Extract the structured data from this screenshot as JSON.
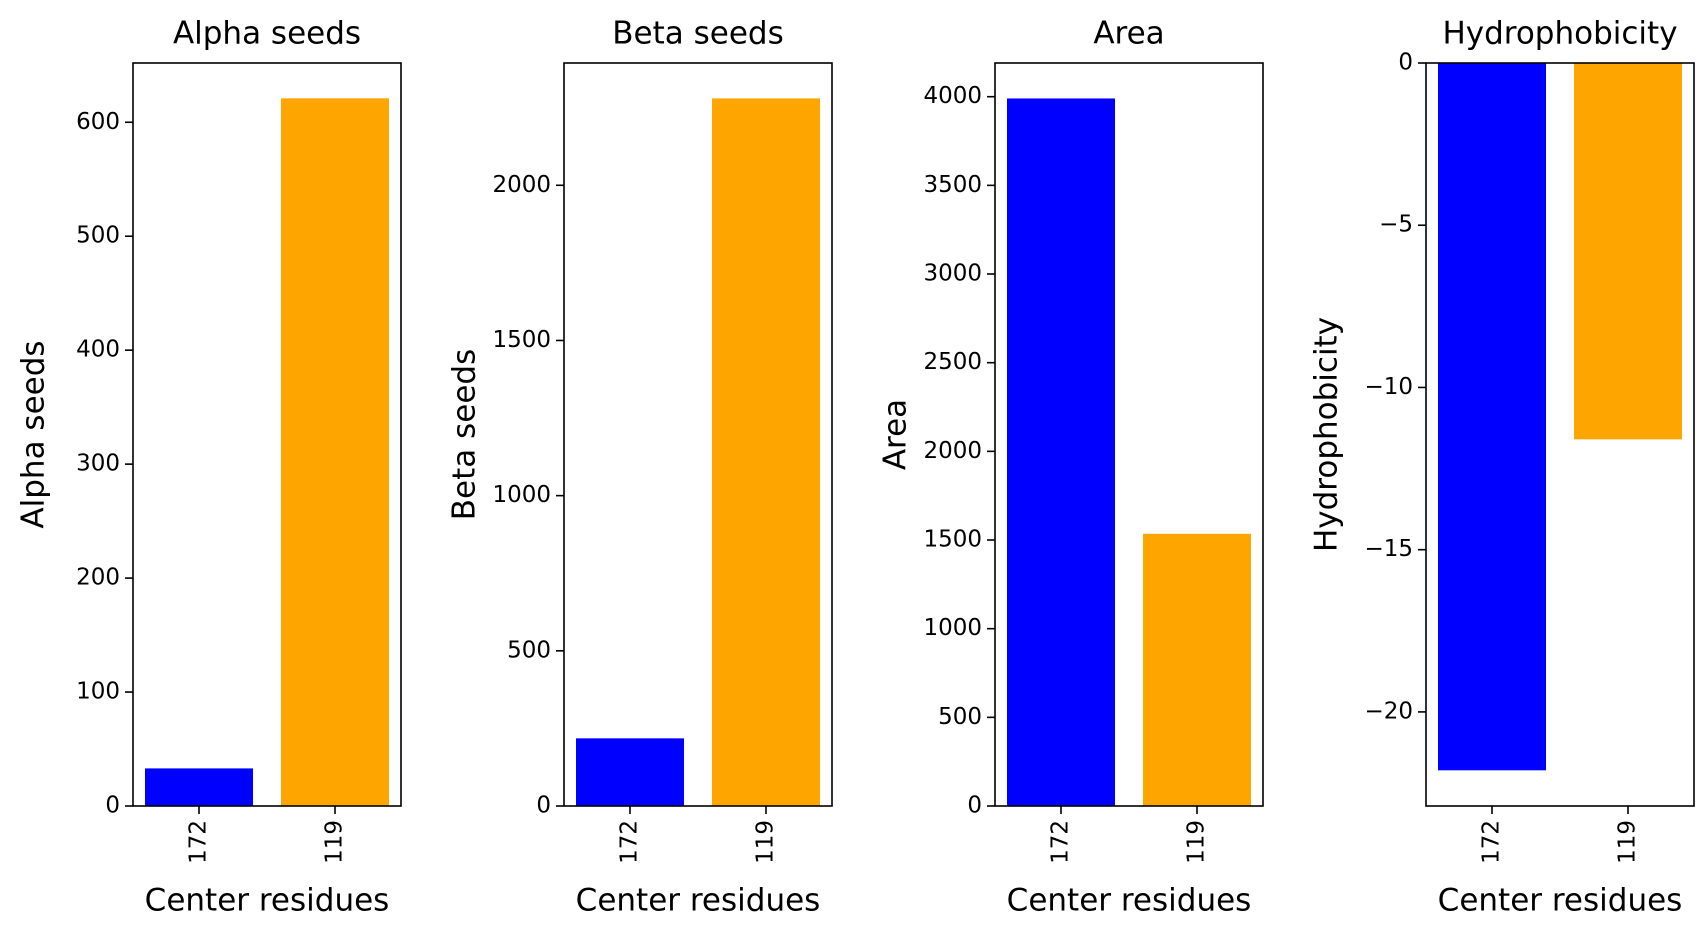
{
  "colors": {
    "series_172": "#0000ff",
    "series_119": "#ffa500",
    "frame": "#000000",
    "background": "#ffffff"
  },
  "chart_data": [
    {
      "type": "bar",
      "title": "Alpha seeds",
      "xlabel": "Center residues",
      "ylabel": "Alpha seeds",
      "categories": [
        "172",
        "119"
      ],
      "values": [
        33,
        621
      ],
      "ylim": [
        0,
        652
      ],
      "yticks": [
        0,
        100,
        200,
        300,
        400,
        500,
        600
      ],
      "ytick_labels": [
        "0",
        "100",
        "200",
        "300",
        "400",
        "500",
        "600"
      ],
      "bar_colors": [
        "#0000ff",
        "#ffa500"
      ],
      "grid": false,
      "legend": "none"
    },
    {
      "type": "bar",
      "title": "Beta seeds",
      "xlabel": "Center residues",
      "ylabel": "Beta seeds",
      "categories": [
        "172",
        "119"
      ],
      "values": [
        218,
        2280
      ],
      "ylim": [
        0,
        2394
      ],
      "yticks": [
        0,
        500,
        1000,
        1500,
        2000
      ],
      "ytick_labels": [
        "0",
        "500",
        "1000",
        "1500",
        "2000"
      ],
      "bar_colors": [
        "#0000ff",
        "#ffa500"
      ],
      "grid": false,
      "legend": "none"
    },
    {
      "type": "bar",
      "title": "Area",
      "xlabel": "Center residues",
      "ylabel": "Area",
      "categories": [
        "172",
        "119"
      ],
      "values": [
        3990,
        1535
      ],
      "ylim": [
        0,
        4190
      ],
      "yticks": [
        0,
        500,
        1000,
        1500,
        2000,
        2500,
        3000,
        3500,
        4000
      ],
      "ytick_labels": [
        "0",
        "500",
        "1000",
        "1500",
        "2000",
        "2500",
        "3000",
        "3500",
        "4000"
      ],
      "bar_colors": [
        "#0000ff",
        "#ffa500"
      ],
      "grid": false,
      "legend": "none"
    },
    {
      "type": "bar",
      "title": "Hydrophobicity",
      "xlabel": "Center residues",
      "ylabel": "Hydrophobicity",
      "categories": [
        "172",
        "119"
      ],
      "values": [
        -21.8,
        -11.6
      ],
      "ylim": [
        -22.9,
        0
      ],
      "yticks": [
        -20,
        -15,
        -10,
        -5,
        0
      ],
      "ytick_labels": [
        "−20",
        "−15",
        "−10",
        "−5",
        "0"
      ],
      "bar_colors": [
        "#0000ff",
        "#ffa500"
      ],
      "grid": false,
      "legend": "none"
    }
  ]
}
